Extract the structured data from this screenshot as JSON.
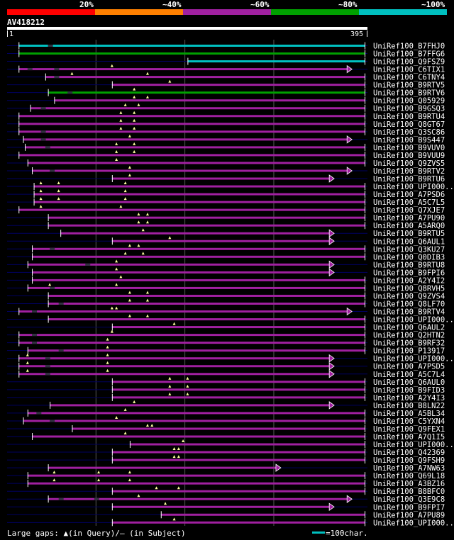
{
  "header": {
    "legend_labels": [
      "20%",
      "~40%",
      "~60%",
      "~80%",
      "~100%"
    ],
    "legend_colors": [
      "#ff0000",
      "#ff8000",
      "#a020a0",
      "#00a000",
      "#00c0c0"
    ],
    "query_id": "AV418212",
    "query_start": "1",
    "query_end": "395"
  },
  "footer": {
    "gaps_text": "Large gaps: ▲(in Query)/– (in Subject)",
    "scale_text": "=100char."
  },
  "colors": {
    "grid": "#555555",
    "dark_line": "#000060",
    "gap_marker": "#ffffa0",
    "label": "#ffffff"
  },
  "hits": [
    {
      "id": "UniRef100_B7FHJ0",
      "color": "cyan",
      "s": 5,
      "e": 395,
      "gaps": [
        38
      ],
      "m": []
    },
    {
      "id": "UniRef100_B7FFG6",
      "color": "green",
      "s": 5,
      "e": 395,
      "gaps": [],
      "m": []
    },
    {
      "id": "UniRef100_Q9FSZ9",
      "color": "cyan",
      "s": 195,
      "e": 395,
      "gaps": [],
      "m": []
    },
    {
      "id": "UniRef100_C6TIX1",
      "color": "purple",
      "s": 5,
      "e": 380,
      "gaps": [
        15,
        45
      ],
      "m": [
        110
      ]
    },
    {
      "id": "UniRef100_C6TNY4",
      "color": "purple",
      "s": 35,
      "e": 395,
      "gaps": [
        45
      ],
      "m": [
        65,
        150
      ]
    },
    {
      "id": "UniRef100_B9RTV5",
      "color": "purple",
      "s": 110,
      "e": 395,
      "gaps": [],
      "m": [
        175
      ]
    },
    {
      "id": "UniRef100_B9RTV6",
      "color": "green",
      "s": 38,
      "e": 395,
      "gaps": [
        60
      ],
      "m": [
        135
      ]
    },
    {
      "id": "UniRef100_Q05929",
      "color": "purple",
      "s": 45,
      "e": 395,
      "gaps": [],
      "m": [
        135,
        150
      ]
    },
    {
      "id": "UniRef100_B9GSQ3",
      "color": "purple",
      "s": 18,
      "e": 395,
      "gaps": [
        30
      ],
      "m": [
        125,
        140
      ]
    },
    {
      "id": "UniRef100_B9RTU4",
      "color": "purple",
      "s": 5,
      "e": 395,
      "gaps": [],
      "m": [
        120,
        135
      ]
    },
    {
      "id": "UniRef100_Q8GT67",
      "color": "purple",
      "s": 5,
      "e": 395,
      "gaps": [],
      "m": [
        120,
        135
      ]
    },
    {
      "id": "UniRef100_Q3SC86",
      "color": "purple",
      "s": 5,
      "e": 395,
      "gaps": [
        30
      ],
      "m": [
        120,
        135
      ]
    },
    {
      "id": "UniRef100_B9S447",
      "color": "purple",
      "s": 10,
      "e": 380,
      "gaps": [
        30
      ],
      "m": [
        130
      ]
    },
    {
      "id": "UniRef100_B9VUV0",
      "color": "purple",
      "s": 12,
      "e": 395,
      "gaps": [
        35
      ],
      "m": [
        115,
        135
      ]
    },
    {
      "id": "UniRef100_B9VUU9",
      "color": "purple",
      "s": 5,
      "e": 395,
      "gaps": [],
      "m": [
        115,
        135
      ]
    },
    {
      "id": "UniRef100_Q9ZVS5",
      "color": "purple",
      "s": 15,
      "e": 395,
      "gaps": [],
      "m": [
        115
      ]
    },
    {
      "id": "UniRef100_B9RTV2",
      "color": "purple",
      "s": 20,
      "e": 380,
      "gaps": [
        40
      ],
      "m": [
        130
      ]
    },
    {
      "id": "UniRef100_B9RTU6",
      "color": "purple",
      "s": 110,
      "e": 360,
      "gaps": [],
      "m": [
        130
      ]
    },
    {
      "id": "UniRef100_UPI000..",
      "color": "purple",
      "s": 22,
      "e": 395,
      "gaps": [],
      "m": [
        30,
        50,
        125
      ]
    },
    {
      "id": "UniRef100_A7PSD6",
      "color": "purple",
      "s": 22,
      "e": 395,
      "gaps": [],
      "m": [
        30,
        50,
        125
      ]
    },
    {
      "id": "UniRef100_A5C7L5",
      "color": "purple",
      "s": 22,
      "e": 395,
      "gaps": [],
      "m": [
        30,
        50,
        125
      ]
    },
    {
      "id": "UniRef100_Q7XJE7",
      "color": "purple",
      "s": 5,
      "e": 395,
      "gaps": [],
      "m": [
        30,
        120
      ]
    },
    {
      "id": "UniRef100_A7PU90",
      "color": "purple",
      "s": 38,
      "e": 395,
      "gaps": [],
      "m": [
        140,
        150
      ]
    },
    {
      "id": "UniRef100_A5ARQ0",
      "color": "purple",
      "s": 38,
      "e": 395,
      "gaps": [],
      "m": [
        140,
        150
      ]
    },
    {
      "id": "UniRef100_B9RTU5",
      "color": "purple",
      "s": 52,
      "e": 360,
      "gaps": [],
      "m": [
        145
      ]
    },
    {
      "id": "UniRef100_Q6AUL1",
      "color": "purple",
      "s": 110,
      "e": 360,
      "gaps": [],
      "m": [
        175
      ]
    },
    {
      "id": "UniRef100_Q3KU27",
      "color": "purple",
      "s": 20,
      "e": 395,
      "gaps": [
        40
      ],
      "m": [
        130,
        140
      ]
    },
    {
      "id": "UniRef100_Q0DIB3",
      "color": "purple",
      "s": 20,
      "e": 395,
      "gaps": [],
      "m": [
        125,
        145
      ]
    },
    {
      "id": "UniRef100_B9RTU8",
      "color": "purple",
      "s": 15,
      "e": 360,
      "gaps": [
        80
      ],
      "m": [
        115
      ]
    },
    {
      "id": "UniRef100_B9FPI6",
      "color": "purple",
      "s": 20,
      "e": 360,
      "gaps": [],
      "m": [
        115
      ]
    },
    {
      "id": "UniRef100_A2Y4I2",
      "color": "purple",
      "s": 20,
      "e": 395,
      "gaps": [],
      "m": [
        120
      ]
    },
    {
      "id": "UniRef100_Q8RVH5",
      "color": "purple",
      "s": 15,
      "e": 395,
      "gaps": [
        40
      ],
      "m": [
        40,
        115
      ]
    },
    {
      "id": "UniRef100_Q9ZVS4",
      "color": "purple",
      "s": 38,
      "e": 395,
      "gaps": [],
      "m": [
        130,
        150
      ]
    },
    {
      "id": "UniRef100_Q8LF70",
      "color": "purple",
      "s": 38,
      "e": 395,
      "gaps": [
        50
      ],
      "m": [
        130,
        150
      ]
    },
    {
      "id": "UniRef100_B9RTV4",
      "color": "purple",
      "s": 5,
      "e": 380,
      "gaps": [
        20
      ],
      "m": [
        110,
        115
      ]
    },
    {
      "id": "UniRef100_UPI000..",
      "color": "purple",
      "s": 38,
      "e": 395,
      "gaps": [],
      "m": [
        130,
        150
      ]
    },
    {
      "id": "UniRef100_Q6AUL2",
      "color": "purple",
      "s": 110,
      "e": 395,
      "gaps": [],
      "m": [
        180
      ]
    },
    {
      "id": "UniRef100_Q2HTN2",
      "color": "purple",
      "s": 5,
      "e": 395,
      "gaps": [
        20
      ],
      "m": [
        110
      ]
    },
    {
      "id": "UniRef100_B9RF32",
      "color": "purple",
      "s": 5,
      "e": 395,
      "gaps": [
        20
      ],
      "m": [
        105
      ]
    },
    {
      "id": "UniRef100_P13917",
      "color": "purple",
      "s": 15,
      "e": 395,
      "gaps": [
        50
      ],
      "m": [
        105
      ]
    },
    {
      "id": "UniRef100_UPI000..",
      "color": "purple",
      "s": 5,
      "e": 360,
      "gaps": [
        35
      ],
      "m": [
        15,
        105
      ]
    },
    {
      "id": "UniRef100_A7PSD5",
      "color": "purple",
      "s": 5,
      "e": 360,
      "gaps": [
        35
      ],
      "m": [
        15,
        105
      ]
    },
    {
      "id": "UniRef100_A5C7L4",
      "color": "purple",
      "s": 5,
      "e": 360,
      "gaps": [
        35
      ],
      "m": [
        15,
        105
      ]
    },
    {
      "id": "UniRef100_Q6AUL0",
      "color": "purple",
      "s": 110,
      "e": 395,
      "gaps": [],
      "m": [
        175,
        195
      ]
    },
    {
      "id": "UniRef100_B9FID3",
      "color": "purple",
      "s": 110,
      "e": 395,
      "gaps": [],
      "m": [
        175,
        195
      ]
    },
    {
      "id": "UniRef100_A2Y4I3",
      "color": "purple",
      "s": 110,
      "e": 395,
      "gaps": [],
      "m": [
        175,
        195
      ]
    },
    {
      "id": "UniRef100_B8LN22",
      "color": "purple",
      "s": 40,
      "e": 360,
      "gaps": [],
      "m": [
        135
      ]
    },
    {
      "id": "UniRef100_A5BL34",
      "color": "purple",
      "s": 15,
      "e": 395,
      "gaps": [
        25
      ],
      "m": [
        125
      ]
    },
    {
      "id": "UniRef100_C5YXN4",
      "color": "purple",
      "s": 10,
      "e": 395,
      "gaps": [
        40
      ],
      "m": [
        115
      ]
    },
    {
      "id": "UniRef100_Q9FEX1",
      "color": "purple",
      "s": 65,
      "e": 395,
      "gaps": [],
      "m": [
        150,
        155
      ]
    },
    {
      "id": "UniRef100_A7Q1I5",
      "color": "purple",
      "s": 20,
      "e": 395,
      "gaps": [],
      "m": [
        125
      ]
    },
    {
      "id": "UniRef100_UPI000..",
      "color": "purple",
      "s": 130,
      "e": 395,
      "gaps": [],
      "m": [
        190
      ]
    },
    {
      "id": "UniRef100_Q42369",
      "color": "purple",
      "s": 110,
      "e": 395,
      "gaps": [],
      "m": [
        180,
        185
      ]
    },
    {
      "id": "UniRef100_Q9FSH9",
      "color": "purple",
      "s": 110,
      "e": 395,
      "gaps": [],
      "m": [
        180,
        185
      ]
    },
    {
      "id": "UniRef100_A7NW63",
      "color": "purple",
      "s": 38,
      "e": 300,
      "gaps": [],
      "m": []
    },
    {
      "id": "UniRef100_Q69L18",
      "color": "purple",
      "s": 15,
      "e": 395,
      "gaps": [],
      "m": [
        45,
        95,
        130
      ]
    },
    {
      "id": "UniRef100_A3BZ16",
      "color": "purple",
      "s": 15,
      "e": 395,
      "gaps": [],
      "m": [
        45,
        95,
        130
      ]
    },
    {
      "id": "UniRef100_B8BFC0",
      "color": "purple",
      "s": 110,
      "e": 395,
      "gaps": [],
      "m": [
        160,
        185
      ]
    },
    {
      "id": "UniRef100_Q3E9C8",
      "color": "purple",
      "s": 38,
      "e": 380,
      "gaps": [
        50,
        90
      ],
      "m": [
        140
      ]
    },
    {
      "id": "UniRef100_B9FPI7",
      "color": "purple",
      "s": 110,
      "e": 360,
      "gaps": [],
      "m": [
        170
      ]
    },
    {
      "id": "UniRef100_A7PU89",
      "color": "purple",
      "s": 165,
      "e": 395,
      "gaps": [],
      "m": []
    },
    {
      "id": "UniRef100_UPI000..",
      "color": "purple",
      "s": 110,
      "e": 395,
      "gaps": [],
      "m": [
        180
      ]
    }
  ]
}
